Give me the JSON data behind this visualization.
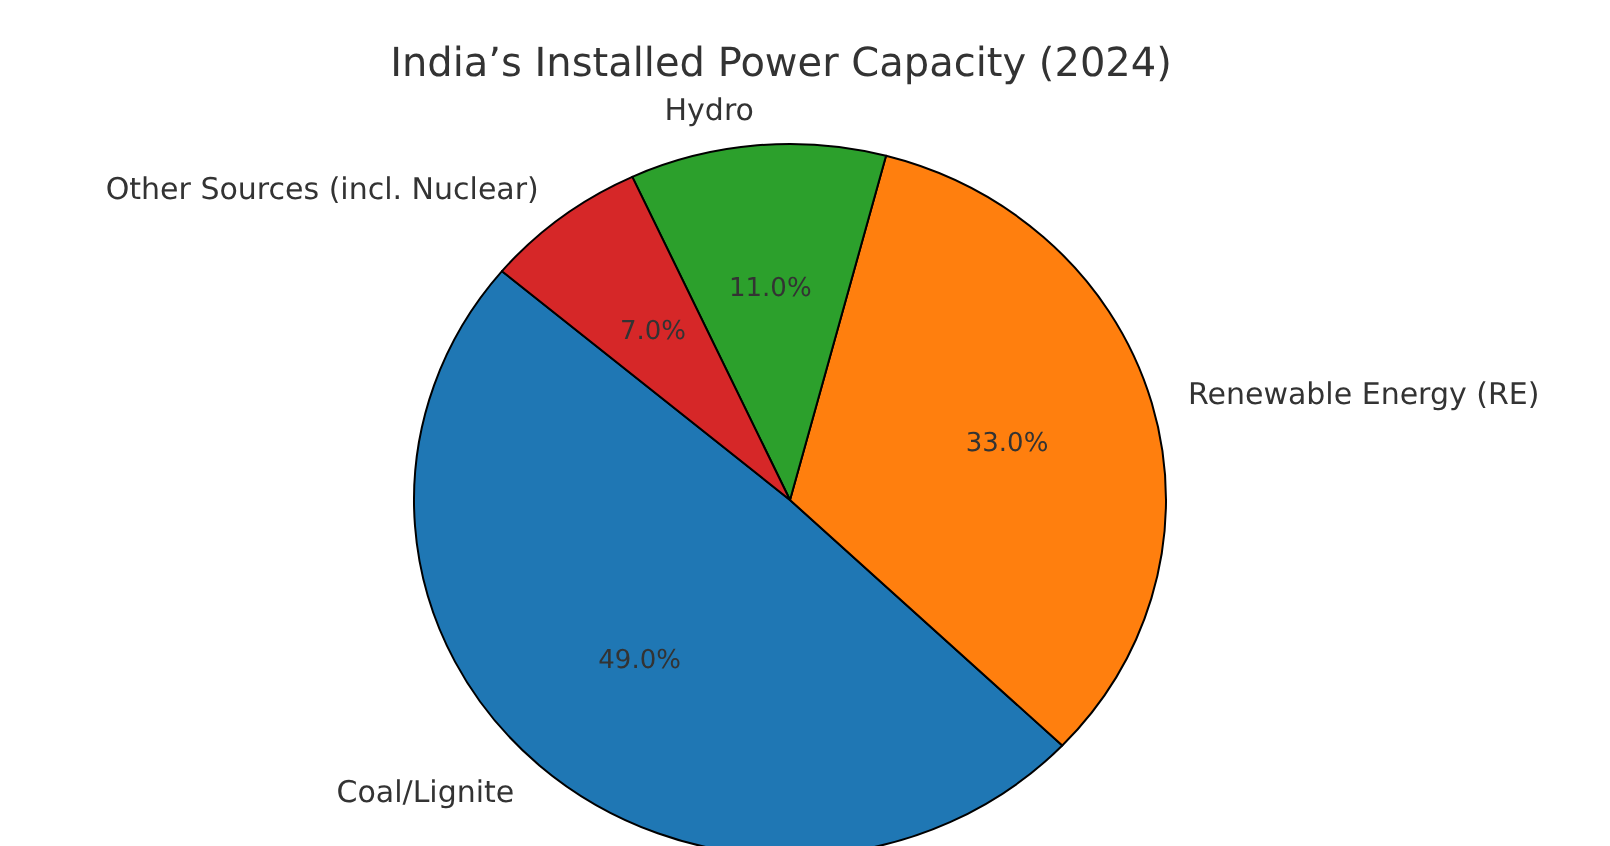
{
  "chart_data": {
    "type": "pie",
    "title": "India’s Installed Power Capacity (2024)",
    "categories": [
      "Coal/Lignite",
      "Renewable Energy (RE)",
      "Hydro",
      "Other Sources (incl. Nuclear)"
    ],
    "values": [
      49,
      33,
      11,
      7
    ],
    "value_labels": [
      "49.0%",
      "33.0%",
      "11.0%",
      "7.0%"
    ],
    "colors": [
      "#1f77b4",
      "#ff7f0e",
      "#2ca02c",
      "#d62728"
    ]
  }
}
